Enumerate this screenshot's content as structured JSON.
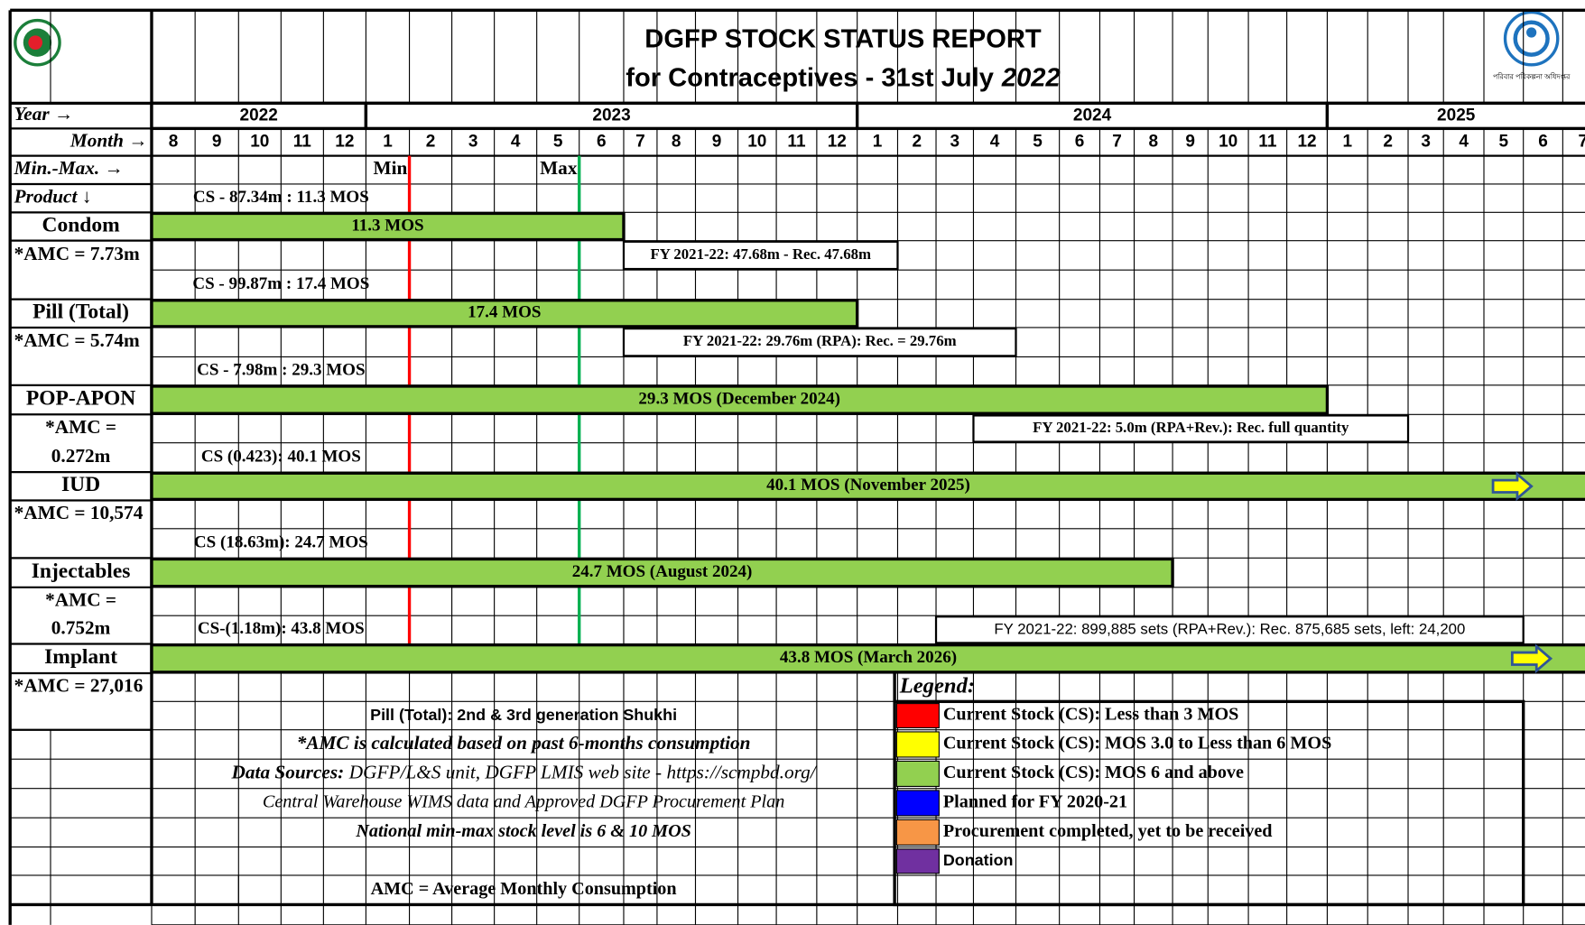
{
  "header": {
    "title": "DGFP STOCK STATUS REPORT",
    "subtitle": "for Contraceptives - 31st July",
    "subtitle_year": "2022",
    "logo_text": "পরিবার পরিকল্পনা অধিদপ্তর"
  },
  "labels": {
    "year": "Year  →",
    "month": "Month →",
    "min_max": "Min.-Max.  →",
    "product": "Product ↓",
    "min": "Min",
    "max": "Max"
  },
  "timeline": {
    "years": [
      2022,
      2023,
      2024,
      2025
    ],
    "months": [
      8,
      9,
      10,
      11,
      12,
      1,
      2,
      3,
      4,
      5,
      6,
      7,
      8,
      9,
      10,
      11,
      12,
      1,
      2,
      3,
      4,
      5,
      6,
      7,
      8,
      9,
      10,
      11,
      12,
      1,
      2,
      3,
      4,
      5,
      6,
      7
    ]
  },
  "products": [
    {
      "name": "Condom",
      "amc": [
        "*AMC = 7.73m"
      ],
      "cs": "CS - 87.34m : 11.3 MOS",
      "bar": "11.3 MOS",
      "fy": "FY 2021-22: 47.68m - Rec. 47.68m"
    },
    {
      "name": "Pill (Total)",
      "amc": [
        "*AMC = 5.74m"
      ],
      "cs": "CS - 99.87m : 17.4 MOS",
      "bar": "17.4 MOS",
      "fy": "FY 2021-22: 29.76m (RPA): Rec. = 29.76m"
    },
    {
      "name": "POP-APON",
      "amc": [
        "*AMC =",
        "0.272m"
      ],
      "cs": "CS - 7.98m : 29.3 MOS",
      "bar": "29.3 MOS (December 2024)",
      "fy": "FY 2021-22: 5.0m (RPA+Rev.): Rec. full quantity"
    },
    {
      "name": "IUD",
      "amc": [
        "*AMC = 10,574"
      ],
      "cs": "CS (0.423): 40.1 MOS",
      "bar": "40.1 MOS (November 2025)"
    },
    {
      "name": "Injectables",
      "amc": [
        "*AMC =",
        "0.752m"
      ],
      "cs": "CS (18.63m): 24.7 MOS",
      "bar": "24.7 MOS (August 2024)",
      "fy": "FY 2021-22: 899,885 sets (RPA+Rev.): Rec. 875,685 sets, left: 24,200"
    },
    {
      "name": "Implant",
      "amc": [
        "*AMC = 27,016"
      ],
      "cs": "CS-(1.18m): 43.8 MOS",
      "bar": "43.8 MOS (March 2026)"
    }
  ],
  "notes": {
    "pill": "Pill (Total): 2nd & 3rd generation Shukhi",
    "amc": "*AMC is calculated based on past 6-months consumption",
    "sources_label": "Data Sources:",
    "sources": "DGFP/L&S unit, DGFP LMIS web site -  https://scmpbd.org/",
    "warehouse": "Central Warehouse WIMS data and Approved DGFP Procurement Plan",
    "min_max": "National min-max stock level is 6 & 10 MOS",
    "definition": "AMC = Average Monthly Consumption"
  },
  "legend": {
    "title": "Legend:",
    "items": [
      {
        "label": "Current Stock (CS): Less than 3 MOS",
        "color": "#ff0000"
      },
      {
        "label": "Current Stock (CS): MOS 3.0 to Less than 6 MOS",
        "color": "#ffff00"
      },
      {
        "label": "Current Stock (CS): MOS 6 and above",
        "color": "#92d050"
      },
      {
        "label": "Planned for FY 2020-21",
        "color": "#0000ff"
      },
      {
        "label": "Procurement completed, yet to be received",
        "color": "#f79646"
      },
      {
        "label": "Donation",
        "color": "#7030a0"
      }
    ]
  }
}
